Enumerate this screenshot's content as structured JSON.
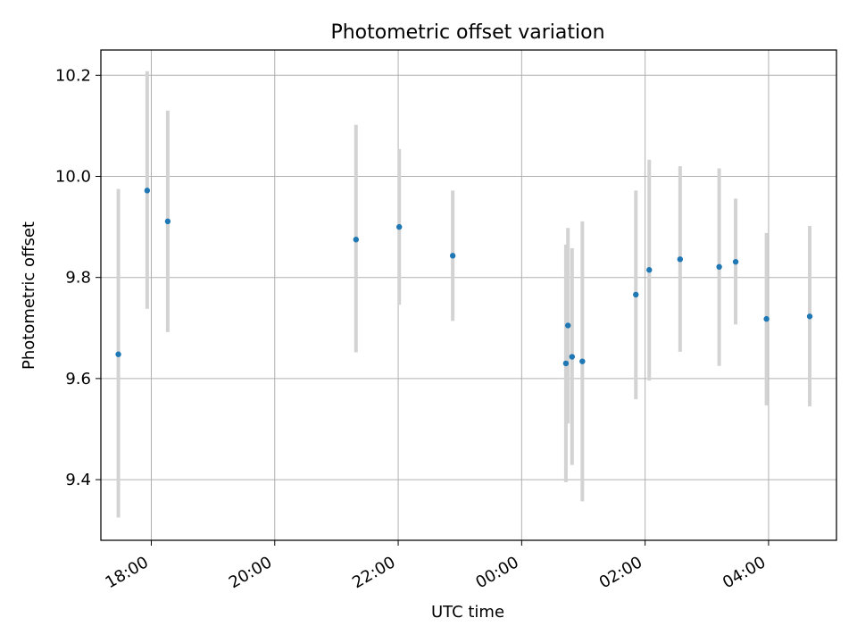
{
  "chart_data": {
    "type": "scatter",
    "title": "Photometric offset variation",
    "xlabel": "UTC time",
    "ylabel": "Photometric offset",
    "x_axis_kind": "time (hours, spanning midnight)",
    "xlim": [
      "17:11",
      "05:06"
    ],
    "ylim": [
      9.28,
      10.25
    ],
    "xticks": [
      "18:00",
      "20:00",
      "22:00",
      "00:00",
      "02:00",
      "04:00"
    ],
    "yticks": [
      "9.4",
      "9.6",
      "9.8",
      "10.0",
      "10.2"
    ],
    "grid": true,
    "marker_color": "#1f77b4",
    "errorbar_color": "#d3d3d3",
    "points": [
      {
        "x": "17:28",
        "y": 9.648,
        "err_low": 9.325,
        "err_high": 9.975
      },
      {
        "x": "17:56",
        "y": 9.972,
        "err_low": 9.738,
        "err_high": 10.208
      },
      {
        "x": "18:16",
        "y": 9.911,
        "err_low": 9.692,
        "err_high": 10.13
      },
      {
        "x": "21:19",
        "y": 9.875,
        "err_low": 9.652,
        "err_high": 10.102
      },
      {
        "x": "22:01",
        "y": 9.9,
        "err_low": 9.746,
        "err_high": 10.054
      },
      {
        "x": "22:53",
        "y": 9.843,
        "err_low": 9.714,
        "err_high": 9.972
      },
      {
        "x": "00:43",
        "y": 9.63,
        "err_low": 9.395,
        "err_high": 9.865
      },
      {
        "x": "00:45",
        "y": 9.705,
        "err_low": 9.511,
        "err_high": 9.898
      },
      {
        "x": "00:49",
        "y": 9.643,
        "err_low": 9.429,
        "err_high": 9.858
      },
      {
        "x": "00:59",
        "y": 9.634,
        "err_low": 9.357,
        "err_high": 9.911
      },
      {
        "x": "01:51",
        "y": 9.766,
        "err_low": 9.559,
        "err_high": 9.972
      },
      {
        "x": "02:04",
        "y": 9.815,
        "err_low": 9.596,
        "err_high": 10.033
      },
      {
        "x": "02:34",
        "y": 9.836,
        "err_low": 9.653,
        "err_high": 10.02
      },
      {
        "x": "03:12",
        "y": 9.821,
        "err_low": 9.625,
        "err_high": 10.016
      },
      {
        "x": "03:28",
        "y": 9.831,
        "err_low": 9.707,
        "err_high": 9.956
      },
      {
        "x": "03:58",
        "y": 9.718,
        "err_low": 9.547,
        "err_high": 9.888
      },
      {
        "x": "04:40",
        "y": 9.723,
        "err_low": 9.545,
        "err_high": 9.902
      }
    ]
  }
}
